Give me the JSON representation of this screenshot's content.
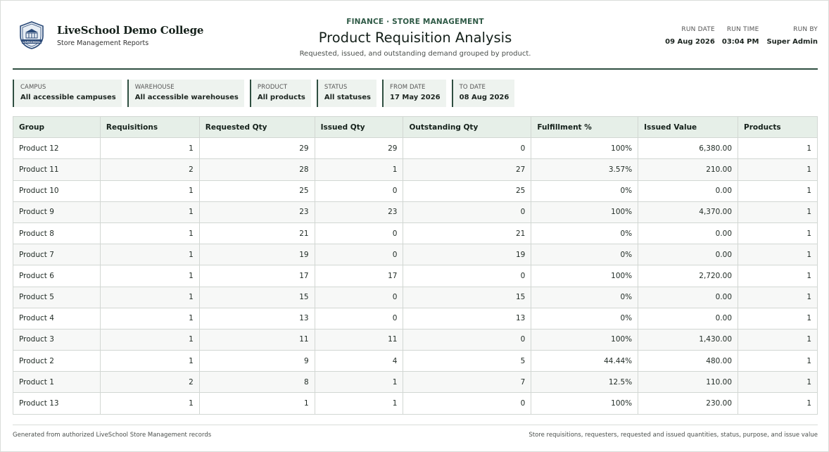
{
  "brand": {
    "name": "LiveSchool Demo College",
    "subtitle": "Store Management Reports",
    "logo_icon": "college-crest-icon",
    "logo_text": "LIVESCHOOL"
  },
  "header": {
    "eyebrow": "FINANCE · STORE MANAGEMENT",
    "title": "Product Requisition Analysis",
    "subtitle": "Requested, issued, and outstanding demand grouped by product."
  },
  "run_meta": [
    {
      "label": "RUN DATE",
      "value": "09 Aug 2026"
    },
    {
      "label": "RUN TIME",
      "value": "03:04 PM"
    },
    {
      "label": "RUN BY",
      "value": "Super Admin"
    }
  ],
  "filters": [
    {
      "label": "CAMPUS",
      "value": "All accessible campuses"
    },
    {
      "label": "WAREHOUSE",
      "value": "All accessible warehouses"
    },
    {
      "label": "PRODUCT",
      "value": "All products"
    },
    {
      "label": "STATUS",
      "value": "All statuses"
    },
    {
      "label": "FROM DATE",
      "value": "17 May 2026"
    },
    {
      "label": "TO DATE",
      "value": "08 Aug 2026"
    }
  ],
  "table": {
    "columns": [
      "Group",
      "Requisitions",
      "Requested Qty",
      "Issued Qty",
      "Outstanding Qty",
      "Fulfillment %",
      "Issued Value",
      "Products"
    ],
    "rows": [
      [
        "Product 12",
        "1",
        "29",
        "29",
        "0",
        "100%",
        "6,380.00",
        "1"
      ],
      [
        "Product 11",
        "2",
        "28",
        "1",
        "27",
        "3.57%",
        "210.00",
        "1"
      ],
      [
        "Product 10",
        "1",
        "25",
        "0",
        "25",
        "0%",
        "0.00",
        "1"
      ],
      [
        "Product 9",
        "1",
        "23",
        "23",
        "0",
        "100%",
        "4,370.00",
        "1"
      ],
      [
        "Product 8",
        "1",
        "21",
        "0",
        "21",
        "0%",
        "0.00",
        "1"
      ],
      [
        "Product 7",
        "1",
        "19",
        "0",
        "19",
        "0%",
        "0.00",
        "1"
      ],
      [
        "Product 6",
        "1",
        "17",
        "17",
        "0",
        "100%",
        "2,720.00",
        "1"
      ],
      [
        "Product 5",
        "1",
        "15",
        "0",
        "15",
        "0%",
        "0.00",
        "1"
      ],
      [
        "Product 4",
        "1",
        "13",
        "0",
        "13",
        "0%",
        "0.00",
        "1"
      ],
      [
        "Product 3",
        "1",
        "11",
        "11",
        "0",
        "100%",
        "1,430.00",
        "1"
      ],
      [
        "Product 2",
        "1",
        "9",
        "4",
        "5",
        "44.44%",
        "480.00",
        "1"
      ],
      [
        "Product 1",
        "2",
        "8",
        "1",
        "7",
        "12.5%",
        "110.00",
        "1"
      ],
      [
        "Product 13",
        "1",
        "1",
        "1",
        "0",
        "100%",
        "230.00",
        "1"
      ]
    ]
  },
  "footer": {
    "left": "Generated from authorized LiveSchool Store Management records",
    "right": "Store requisitions, requesters, requested and issued quantities, status, purpose, and issue value"
  },
  "colors": {
    "accent": "#2f4f41",
    "header_bg": "#e6efe8",
    "filter_bg": "#eef3ef"
  }
}
